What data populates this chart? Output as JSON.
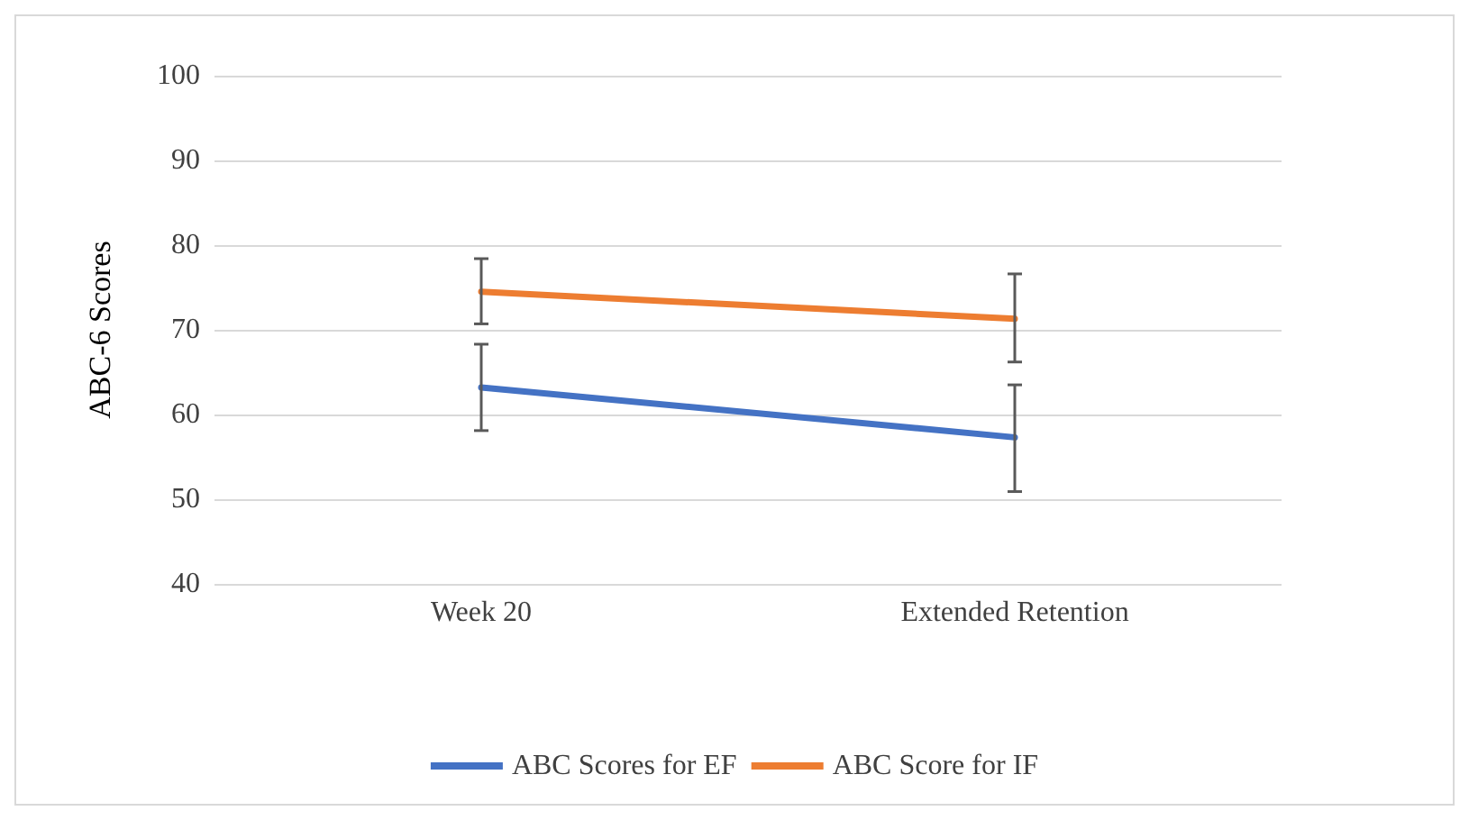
{
  "chart_data": {
    "type": "line",
    "ylabel": "ABC-6 Scores",
    "categories": [
      "Week 20",
      "Extended Retention"
    ],
    "series": [
      {
        "name": "ABC Scores for EF",
        "color": "#4472c4",
        "values": [
          63.2,
          57.3
        ],
        "errors": [
          [
            58.1,
            68.3
          ],
          [
            50.9,
            63.5
          ]
        ]
      },
      {
        "name": "ABC Score for IF",
        "color": "#ed7d31",
        "values": [
          74.5,
          71.3
        ],
        "errors": [
          [
            70.7,
            78.4
          ],
          [
            66.2,
            76.6
          ]
        ]
      }
    ],
    "ylim": [
      40,
      100
    ],
    "yticks": [
      40,
      50,
      60,
      70,
      80,
      90,
      100
    ],
    "grid": "y",
    "legend": "bottom",
    "marker": "none",
    "line_style": "solid"
  }
}
